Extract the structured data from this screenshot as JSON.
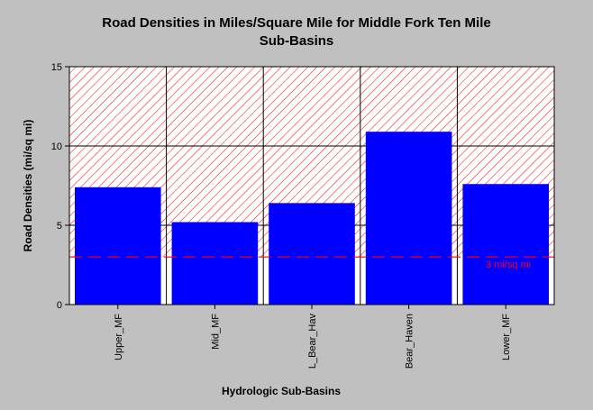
{
  "chart_data": {
    "type": "bar",
    "title_line1": "Road Densities in Miles/Square Mile for Middle Fork Ten Mile",
    "title_line2": "Sub-Basins",
    "xlabel": "Hydrologic Sub-Basins",
    "ylabel": "Road Densities (mi/sq mi)",
    "categories": [
      "Upper_MF",
      "Mid_MF",
      "L_Bear_Hav",
      "Bear_Haven",
      "Lower_MF"
    ],
    "values": [
      7.4,
      5.2,
      6.4,
      10.9,
      7.6
    ],
    "ylim": [
      0,
      15
    ],
    "yticks": [
      0,
      5,
      10,
      15
    ],
    "grid": true,
    "threshold": {
      "value": 3,
      "label": "3 mi/sq mi"
    },
    "hatched_region_from": 3,
    "colors": {
      "bar": "#0000ff",
      "threshold_line": "#ff0000",
      "threshold_label": "#ff0000",
      "hatch": "#ff0000",
      "plot_background": "#ffffff",
      "page_background": "#c0c0c0"
    }
  }
}
